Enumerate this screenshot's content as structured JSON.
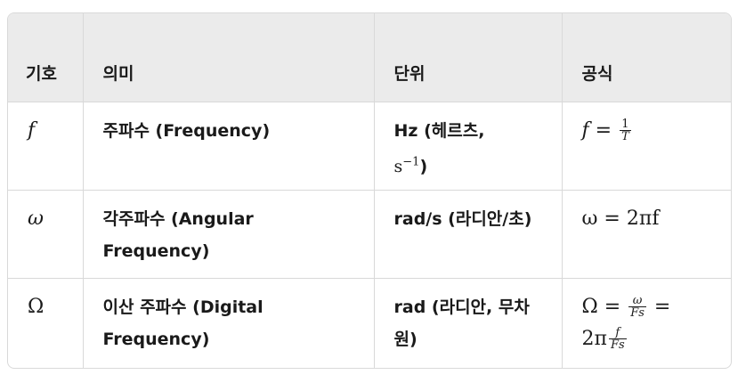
{
  "table": {
    "headers": [
      "기호",
      "의미",
      "단위",
      "공식"
    ],
    "rows": [
      {
        "symbol": "f",
        "meaning": "주파수 (Frequency)",
        "unit_text": "Hz (헤르츠,",
        "unit_math": "s",
        "unit_sup": "−1",
        "unit_close": ")",
        "formula_lhs": "f",
        "formula_op": "=",
        "frac_num": "1",
        "frac_den": "T"
      },
      {
        "symbol": "ω",
        "meaning": "각주파수 (Angular Frequency)",
        "unit": "rad/s (라디안/초)",
        "formula": "ω = 2πf"
      },
      {
        "symbol": "Ω",
        "meaning": "이산 주파수 (Digital Frequency)",
        "unit": "rad (라디안, 무차원)",
        "formula_lhs": "Ω",
        "formula_op": "=",
        "frac1_num": "ω",
        "frac1_den": "Fs",
        "formula_op2": "=",
        "formula_coef": "2π",
        "frac2_num": "f",
        "frac2_den": "Fs"
      }
    ]
  }
}
